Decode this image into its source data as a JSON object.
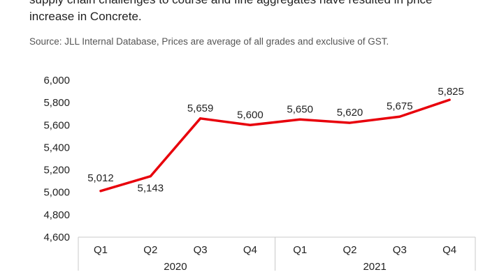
{
  "intro_text": "supply chain challenges to course and fine aggregates have resulted in price increase in Concrete.",
  "source_text": "Source: JLL Internal Database, Prices are average of all grades and exclusive of GST.",
  "chart_data": {
    "type": "line",
    "categories": [
      "Q1",
      "Q2",
      "Q3",
      "Q4",
      "Q1",
      "Q2",
      "Q3",
      "Q4"
    ],
    "groups": [
      {
        "label": "2020",
        "start": 0,
        "end": 3
      },
      {
        "label": "2021",
        "start": 4,
        "end": 7
      }
    ],
    "series": [
      {
        "values": [
          5012,
          5143,
          5659,
          5600,
          5650,
          5620,
          5675,
          5825
        ],
        "color": "#e8000b"
      }
    ],
    "data_labels": [
      "5,012",
      "5,143",
      "5,659",
      "5,600",
      "5,650",
      "5,620",
      "5,675",
      "5,825"
    ],
    "ylim": [
      4600,
      6000
    ],
    "yticks": [
      6000,
      5800,
      5600,
      5400,
      5200,
      5000,
      4800,
      4600
    ],
    "ytick_labels": [
      "6,000",
      "5,800",
      "5,600",
      "5,400",
      "5,200",
      "5,000",
      "4,800",
      "4,600"
    ],
    "grid": false,
    "legend": "none"
  }
}
